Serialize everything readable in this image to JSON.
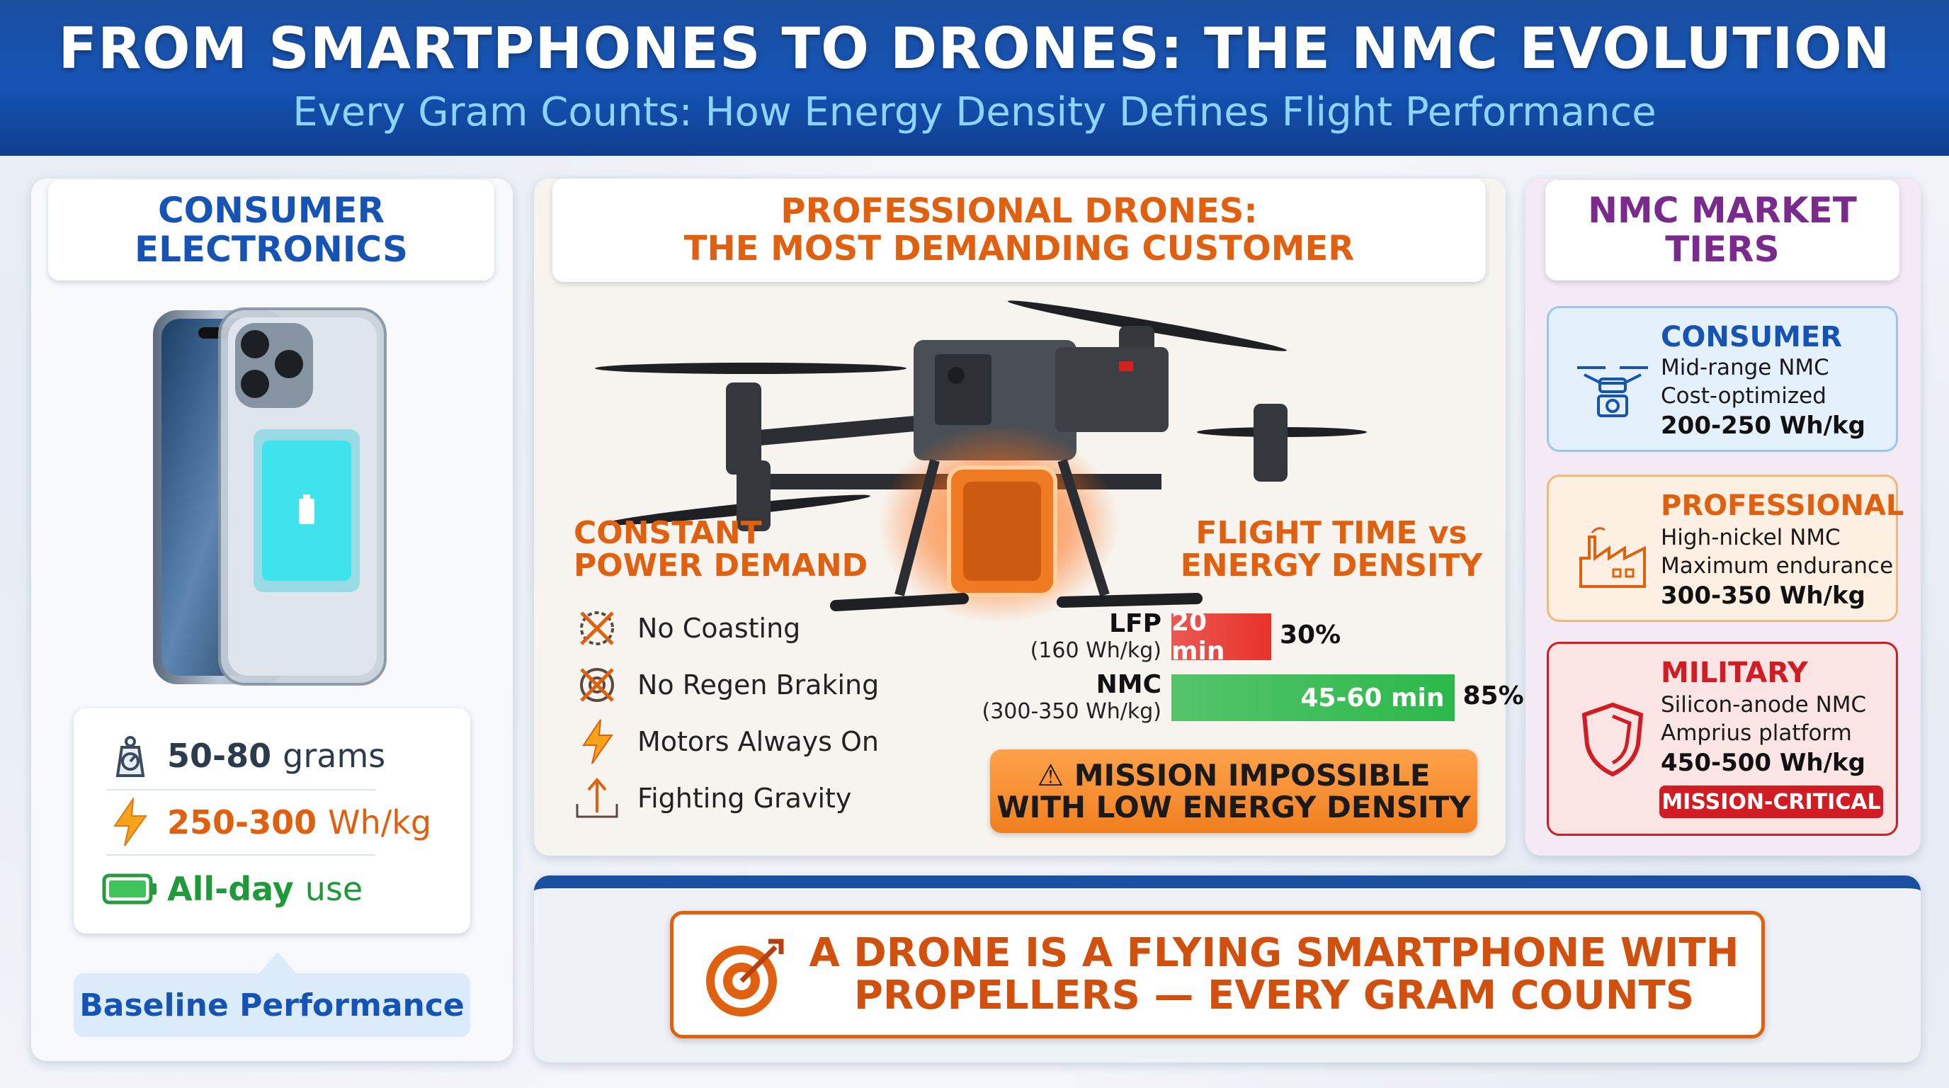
{
  "header": {
    "title": "FROM SMARTPHONES TO DRONES: THE NMC EVOLUTION",
    "subtitle": "Every Gram Counts: How Energy Density Defines Flight Performance"
  },
  "consumer_electronics": {
    "title_line1": "CONSUMER",
    "title_line2": "ELECTRONICS",
    "stats": [
      {
        "value": "50-80",
        "unit": "grams",
        "color": "#2b3a4d",
        "icon": "scale-icon"
      },
      {
        "value": "250-300",
        "unit": "Wh/kg",
        "color": "#e0600f",
        "icon": "lightning-icon"
      },
      {
        "value": "All-day",
        "unit": "use",
        "color": "#1f9a3a",
        "icon": "battery-icon"
      }
    ],
    "baseline_label": "Baseline Performance"
  },
  "professional_drones": {
    "title_line1": "PROFESSIONAL DRONES:",
    "title_line2": "THE MOST DEMANDING CUSTOMER",
    "power_demand": {
      "title_line1": "CONSTANT",
      "title_line2": "POWER DEMAND",
      "items": [
        {
          "label": "No Coasting",
          "icon": "no-coasting-icon"
        },
        {
          "label": "No Regen Braking",
          "icon": "no-regen-icon"
        },
        {
          "label": "Motors Always On",
          "icon": "lightning-icon"
        },
        {
          "label": "Fighting Gravity",
          "icon": "gravity-arrow-icon"
        }
      ]
    },
    "flight_time": {
      "title_line1": "FLIGHT TIME vs",
      "title_line2": "ENERGY DENSITY"
    },
    "mission_line1": "⚠ MISSION IMPOSSIBLE",
    "mission_line2": "WITH LOW ENERGY DENSITY"
  },
  "chart_data": {
    "type": "bar",
    "categories": [
      "LFP",
      "NMC"
    ],
    "category_sublabels": [
      "(160 Wh/kg)",
      "(300-350 Wh/kg)"
    ],
    "bar_labels": [
      "20 min",
      "45-60 min"
    ],
    "percent_labels": [
      "30%",
      "85%"
    ],
    "values": [
      30,
      85
    ],
    "colors": [
      "#e8322a",
      "#2cb84a"
    ],
    "xlim": [
      0,
      100
    ]
  },
  "market_tiers": {
    "title_line1": "NMC MARKET",
    "title_line2": "TIERS",
    "tiers": [
      {
        "name": "CONSUMER",
        "line1": "Mid-range NMC",
        "line2": "Cost-optimized",
        "value": "200-250 Wh/kg",
        "name_color": "#1553b5",
        "bg": "#e4f0fc",
        "border": "#9cc6ef",
        "icon": "drone-camera-icon"
      },
      {
        "name": "PROFESSIONAL",
        "line1": "High-nickel NMC",
        "line2": "Maximum endurance",
        "value": "300-350 Wh/kg",
        "name_color": "#e0600f",
        "bg": "#fdf0e2",
        "border": "#f3b77a",
        "icon": "factory-icon"
      },
      {
        "name": "MILITARY",
        "line1": "Silicon-anode NMC",
        "line2": "Amprius platform",
        "value": "450-500 Wh/kg",
        "name_color": "#d21c24",
        "bg": "#fbe4e4",
        "border": "#d21c24",
        "icon": "shield-icon",
        "badge": "MISSION-CRITICAL"
      }
    ]
  },
  "bottom": {
    "line1": "A DRONE IS A FLYING SMARTPHONE WITH",
    "line2": "PROPELLERS — EVERY GRAM COUNTS"
  }
}
